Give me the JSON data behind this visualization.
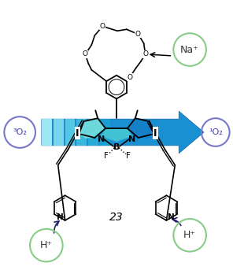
{
  "figure_width": 2.96,
  "figure_height": 3.43,
  "dpi": 100,
  "background_color": "#ffffff",
  "label_na": "Na⁺",
  "label_h1": "H⁺",
  "label_h2": "H⁺",
  "label_3o2": "³O₂",
  "label_1o2": "¹O₂",
  "label_23": "23",
  "na_circle_color": "#b8e8b0",
  "h_circle_color": "#b8e8b0",
  "o2_left_color": "#8888dd",
  "o2_right_color": "#8888dd",
  "arrow_body_color": "#1a8fd1",
  "arrow_left_teal": "#7de0e8",
  "bodipy_left_color": "#6dd8dc",
  "bodipy_right_color": "#1580c8"
}
